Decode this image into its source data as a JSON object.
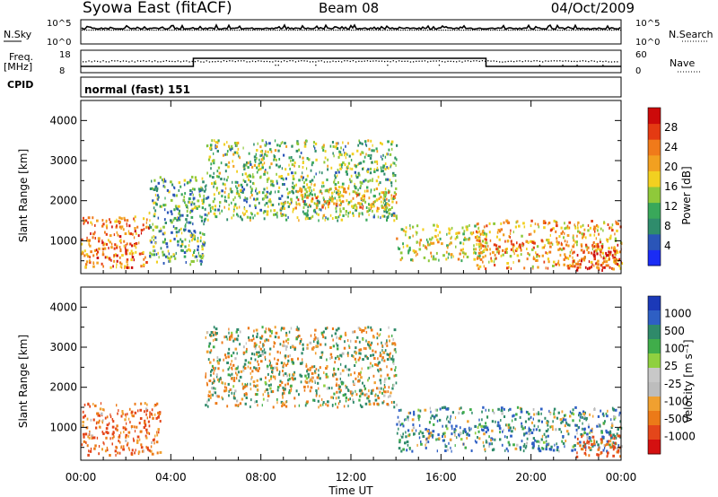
{
  "header": {
    "site": "Syowa East (fitACF)",
    "beam": "Beam 08",
    "date": "04/Oct/2009"
  },
  "panels": {
    "nsky": {
      "label": "N.Sky",
      "right_label": "N.Search",
      "ticks_left": [
        "10^5",
        "10^0"
      ],
      "ticks_right": [
        "10^5",
        "10^0"
      ]
    },
    "freq": {
      "label": "Freq.",
      "unit": "[MHz]",
      "right_label": "Nave",
      "ticks_left": [
        "18",
        "8"
      ],
      "ticks_right": [
        "60",
        "0"
      ]
    },
    "cpid": {
      "label": "CPID",
      "value": "normal (fast) 151"
    }
  },
  "colors": {
    "power": [
      "#1a2cf5",
      "#2a55b8",
      "#2f8c6c",
      "#39a85a",
      "#8fc93a",
      "#f2d020",
      "#f2a020",
      "#f07a1a",
      "#e43a12",
      "#cc0a0a"
    ],
    "velocity": [
      "#1b39b8",
      "#2e5fc4",
      "#2f8a6a",
      "#40ad4a",
      "#8fd040",
      "#c8c8c8",
      "#bdbdbd",
      "#f0a030",
      "#ec7a18",
      "#e4461a",
      "#d41010"
    ]
  },
  "chart_data": [
    {
      "type": "heatmap",
      "title": "Power",
      "ylabel": "Slant Range [km]",
      "xlabel": "",
      "xlim": [
        "00:00",
        "24:00"
      ],
      "ylim": [
        180,
        4500
      ],
      "yticks": [
        "1000",
        "2000",
        "3000",
        "4000"
      ],
      "colorbar": {
        "label": "Power [dB]",
        "ticks": [
          "4",
          "8",
          "12",
          "16",
          "20",
          "24",
          "28"
        ],
        "range": [
          0,
          30
        ]
      },
      "echo_regions": [
        {
          "t": [
            0.0,
            3.0
          ],
          "range_km": [
            300,
            1600
          ],
          "value_db": 22
        },
        {
          "t": [
            3.0,
            5.5
          ],
          "range_km": [
            400,
            2600
          ],
          "value_db": 10
        },
        {
          "t": [
            5.5,
            14.0
          ],
          "range_km": [
            1500,
            3500
          ],
          "value_db": 12
        },
        {
          "t": [
            9.5,
            14.0
          ],
          "range_km": [
            1800,
            2300
          ],
          "value_db": 18
        },
        {
          "t": [
            14.0,
            18.0
          ],
          "range_km": [
            500,
            1400
          ],
          "value_db": 16
        },
        {
          "t": [
            17.5,
            24.0
          ],
          "range_km": [
            300,
            1500
          ],
          "value_db": 20
        },
        {
          "t": [
            22.0,
            24.0
          ],
          "range_km": [
            250,
            900
          ],
          "value_db": 26
        }
      ]
    },
    {
      "type": "heatmap",
      "title": "Velocity",
      "ylabel": "Slant Range [km]",
      "xlabel": "Time UT",
      "xlim": [
        "00:00",
        "24:00"
      ],
      "ylim": [
        180,
        4500
      ],
      "yticks": [
        "1000",
        "2000",
        "3000",
        "4000"
      ],
      "xticks": [
        "00:00",
        "04:00",
        "08:00",
        "12:00",
        "16:00",
        "20:00",
        "00:00"
      ],
      "colorbar": {
        "label": "Velocity [m s⁻¹]",
        "ticks": [
          "1000",
          "500",
          "100",
          "25",
          "-25",
          "-100",
          "-500",
          "-1000"
        ]
      },
      "echo_regions": [
        {
          "t": [
            0.0,
            3.5
          ],
          "range_km": [
            300,
            1600
          ],
          "value_ms": -300
        },
        {
          "t": [
            5.5,
            14.0
          ],
          "range_km": [
            1500,
            3500
          ],
          "value_ms": 0
        },
        {
          "t": [
            14.0,
            24.0
          ],
          "range_km": [
            400,
            1500
          ],
          "value_ms": 200
        },
        {
          "t": [
            22.0,
            24.0
          ],
          "range_km": [
            250,
            800
          ],
          "value_ms": -400
        }
      ]
    }
  ]
}
